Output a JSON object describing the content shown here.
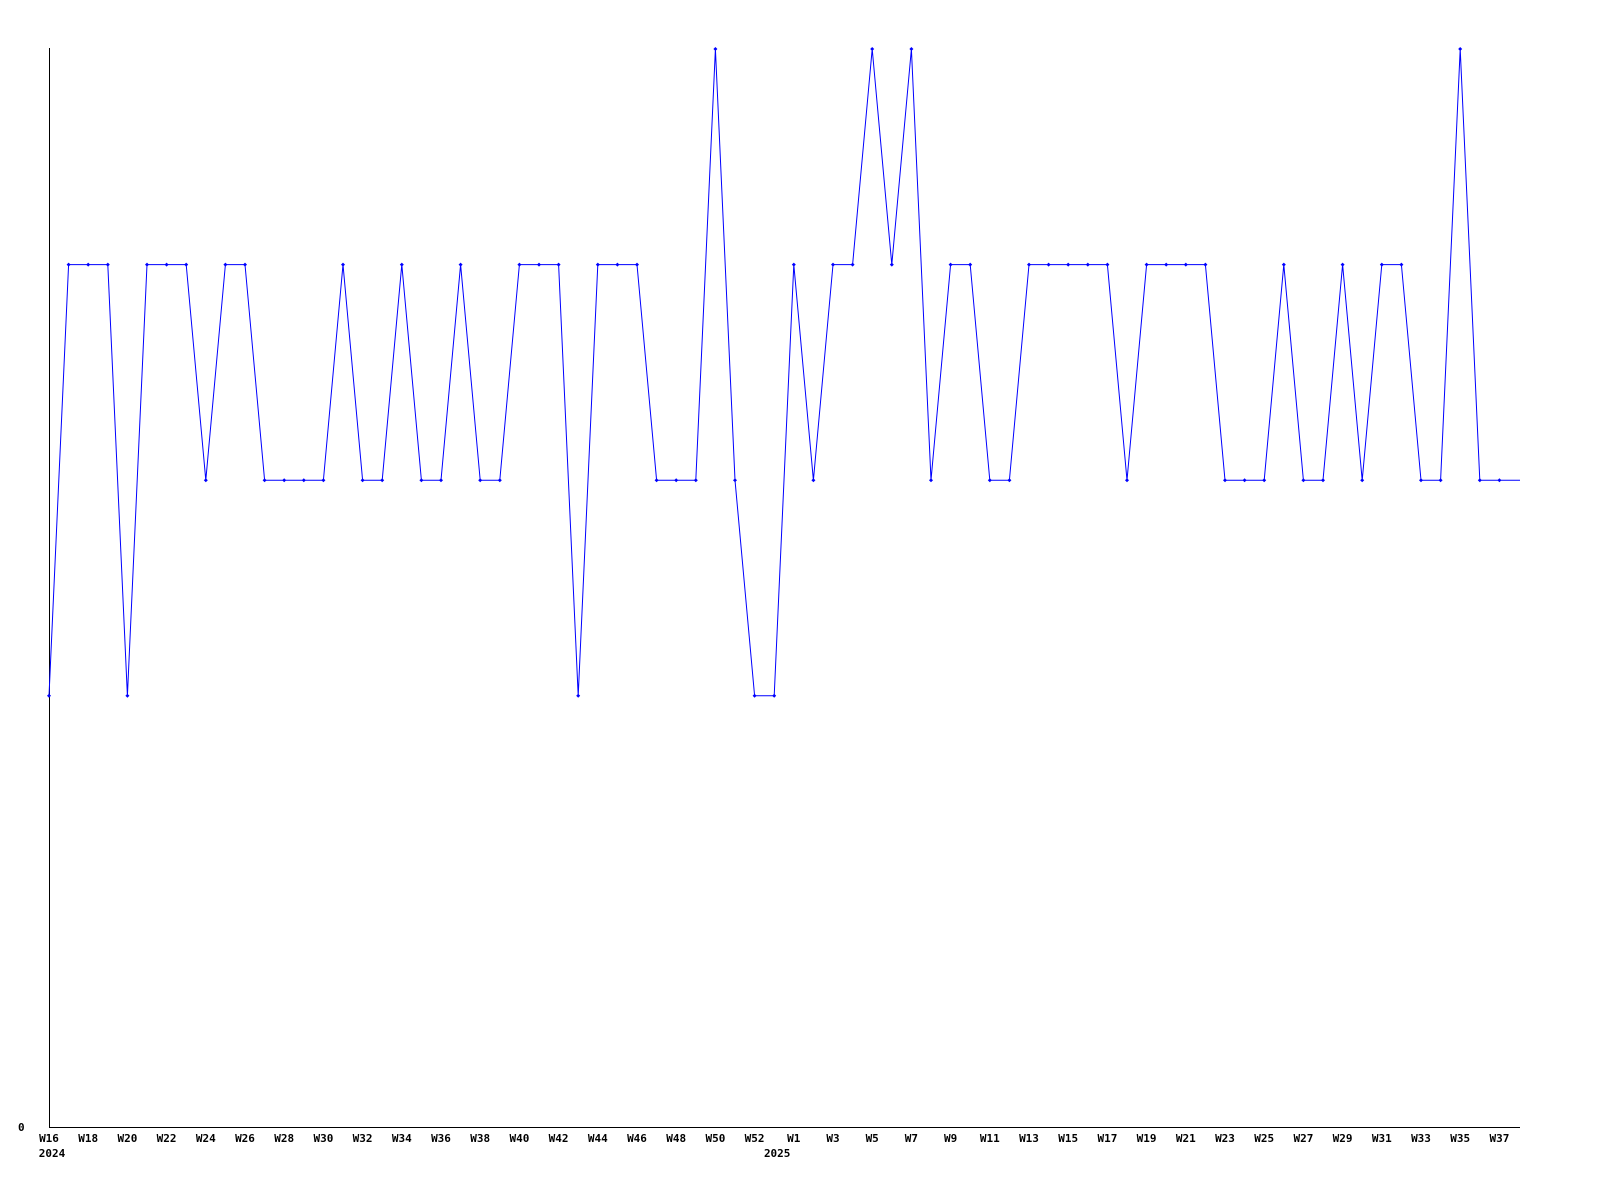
{
  "chart_data": {
    "type": "line",
    "title": "",
    "xlabel": "",
    "ylabel": "",
    "ylim": [
      0,
      5
    ],
    "y_tick_labels": [
      {
        "label": "0",
        "value": 0
      }
    ],
    "grid": false,
    "legend": "none",
    "line_color": "#0000ff",
    "values": [
      2,
      4,
      4,
      4,
      2,
      4,
      4,
      4,
      3,
      4,
      4,
      3,
      3,
      3,
      3,
      4,
      3,
      3,
      4,
      3,
      3,
      4,
      3,
      3,
      4,
      4,
      4,
      2,
      4,
      4,
      4,
      3,
      3,
      3,
      5,
      3,
      2,
      2,
      4,
      3,
      4,
      4,
      5,
      4,
      5,
      3,
      4,
      4,
      3,
      3,
      4,
      4,
      4,
      4,
      4,
      3,
      4,
      4,
      4,
      4,
      3,
      3,
      3,
      4,
      3,
      3,
      4,
      3,
      4,
      4,
      3,
      3,
      5,
      3,
      3
    ],
    "x_ticks": [
      {
        "label": "W16",
        "index": 0
      },
      {
        "label": "W18",
        "index": 2
      },
      {
        "label": "W20",
        "index": 4
      },
      {
        "label": "W22",
        "index": 6
      },
      {
        "label": "W24",
        "index": 8
      },
      {
        "label": "W26",
        "index": 10
      },
      {
        "label": "W28",
        "index": 12
      },
      {
        "label": "W30",
        "index": 14
      },
      {
        "label": "W32",
        "index": 16
      },
      {
        "label": "W34",
        "index": 18
      },
      {
        "label": "W36",
        "index": 20
      },
      {
        "label": "W38",
        "index": 22
      },
      {
        "label": "W40",
        "index": 24
      },
      {
        "label": "W42",
        "index": 26
      },
      {
        "label": "W44",
        "index": 28
      },
      {
        "label": "W46",
        "index": 30
      },
      {
        "label": "W48",
        "index": 32
      },
      {
        "label": "W50",
        "index": 34
      },
      {
        "label": "W52",
        "index": 36
      },
      {
        "label": "W1",
        "index": 38
      },
      {
        "label": "W3",
        "index": 40
      },
      {
        "label": "W5",
        "index": 42
      },
      {
        "label": "W7",
        "index": 44
      },
      {
        "label": "W9",
        "index": 46
      },
      {
        "label": "W11",
        "index": 48
      },
      {
        "label": "W13",
        "index": 50
      },
      {
        "label": "W15",
        "index": 52
      },
      {
        "label": "W17",
        "index": 54
      },
      {
        "label": "W19",
        "index": 56
      },
      {
        "label": "W21",
        "index": 58
      },
      {
        "label": "W23",
        "index": 60
      },
      {
        "label": "W25",
        "index": 62
      },
      {
        "label": "W27",
        "index": 64
      },
      {
        "label": "W29",
        "index": 66
      },
      {
        "label": "W31",
        "index": 68
      },
      {
        "label": "W33",
        "index": 70
      },
      {
        "label": "W35",
        "index": 72
      },
      {
        "label": "W37",
        "index": 74
      }
    ],
    "year_labels": [
      {
        "label": "2024",
        "index": 0
      },
      {
        "label": "2025",
        "index": 37
      }
    ]
  }
}
